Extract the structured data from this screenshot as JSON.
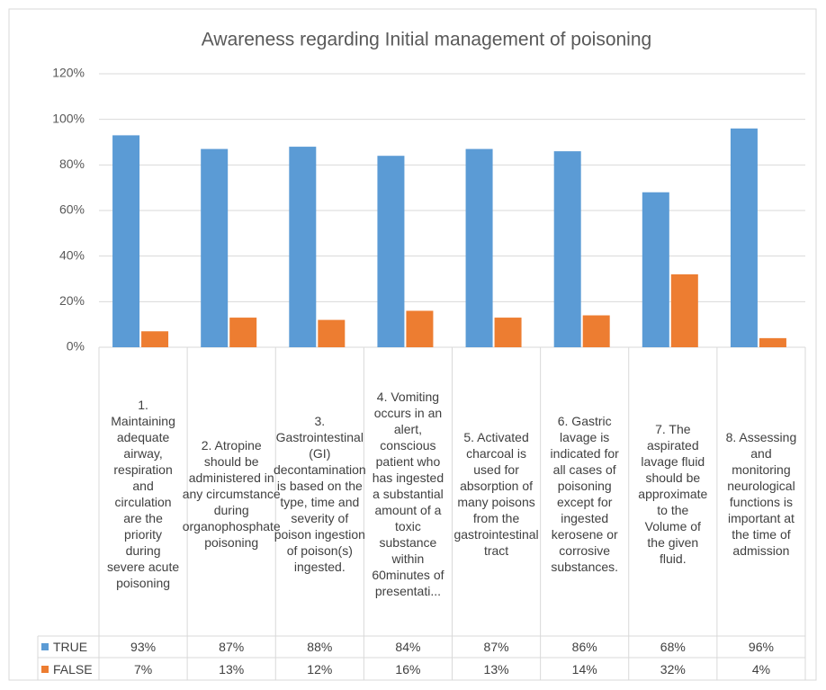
{
  "chart_data": {
    "type": "bar",
    "title": "Awareness regarding Initial management of poisoning",
    "categories": [
      "1. Maintaining adequate airway, respiration and circulation are the priority during severe acute poisoning",
      "2. Atropine should be administered in any circumstance during organophosphate poisoning",
      "3. Gastrointestinal (GI) decontamination is based on the type, time and severity of poison ingestion of poison(s) ingested.",
      "4. Vomiting occurs in an alert, conscious patient who has ingested a substantial amount of a toxic substance within 60minutes of presentati...",
      "5. Activated charcoal is used for absorption of many poisons from the gastrointestinal tract",
      "6. Gastric lavage is indicated for all cases of poisoning except for ingested kerosene or corrosive substances.",
      "7. The aspirated lavage fluid should be approximate to the Volume of the given fluid.",
      "8. Assessing and monitoring neurological functions is important at the time of admission"
    ],
    "series": [
      {
        "name": "TRUE",
        "color": "#5b9bd5",
        "values": [
          93,
          87,
          88,
          84,
          87,
          86,
          68,
          96
        ],
        "value_labels": [
          "93%",
          "87%",
          "88%",
          "84%",
          "87%",
          "86%",
          "68%",
          "96%"
        ]
      },
      {
        "name": "FALSE",
        "color": "#ed7d31",
        "values": [
          7,
          13,
          12,
          16,
          13,
          14,
          32,
          4
        ],
        "value_labels": [
          "7%",
          "13%",
          "12%",
          "16%",
          "13%",
          "14%",
          "32%",
          "4%"
        ]
      }
    ],
    "ylim": [
      0,
      120
    ],
    "yticks": [
      {
        "value": 0,
        "label": "0%"
      },
      {
        "value": 20,
        "label": "20%"
      },
      {
        "value": 40,
        "label": "40%"
      },
      {
        "value": 60,
        "label": "60%"
      },
      {
        "value": 80,
        "label": "80%"
      },
      {
        "value": 100,
        "label": "100%"
      },
      {
        "value": 120,
        "label": "120%"
      }
    ],
    "grid": true
  }
}
